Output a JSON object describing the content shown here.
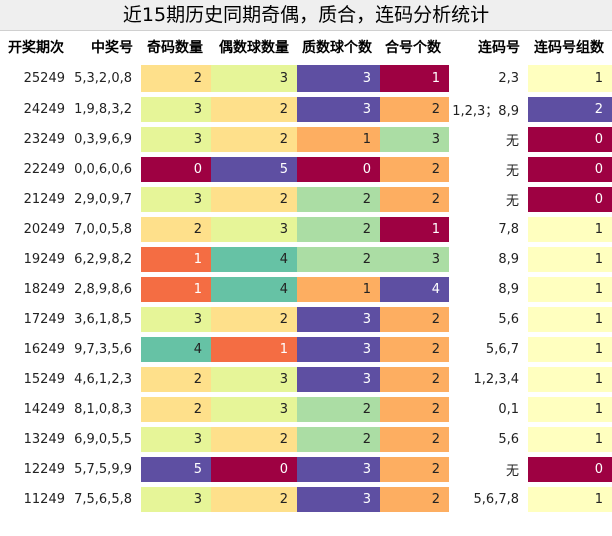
{
  "title": "近15期历史同期奇偶，质合，连码分析统计",
  "headers": [
    "开奖期次",
    "中奖号",
    "奇码数量",
    "偶数球数量",
    "质数球个数",
    "合号个数",
    "连码号",
    "连码号组数"
  ],
  "colors": {
    "dark_red": "#9e0142",
    "red_orange": "#f46d43",
    "orange": "#fdae61",
    "light_orange": "#fee08b",
    "light_yellow": "#ffffbf",
    "light_green": "#e6f598",
    "green": "#abdda4",
    "teal": "#66c2a5",
    "purple": "#5e4fa2"
  },
  "rows": [
    {
      "period": "25249",
      "numbers": "5,3,2,0,8",
      "odd": "2",
      "even": "3",
      "prime": "3",
      "composite": "1",
      "consec": "2,3",
      "groups": "1"
    },
    {
      "period": "24249",
      "numbers": "1,9,8,3,2",
      "odd": "3",
      "even": "2",
      "prime": "3",
      "composite": "2",
      "consec": "1,2,3；8,9",
      "groups": "2"
    },
    {
      "period": "23249",
      "numbers": "0,3,9,6,9",
      "odd": "3",
      "even": "2",
      "prime": "1",
      "composite": "3",
      "consec": "无",
      "groups": "0"
    },
    {
      "period": "22249",
      "numbers": "0,0,6,0,6",
      "odd": "0",
      "even": "5",
      "prime": "0",
      "composite": "2",
      "consec": "无",
      "groups": "0"
    },
    {
      "period": "21249",
      "numbers": "2,9,0,9,7",
      "odd": "3",
      "even": "2",
      "prime": "2",
      "composite": "2",
      "consec": "无",
      "groups": "0"
    },
    {
      "period": "20249",
      "numbers": "7,0,0,5,8",
      "odd": "2",
      "even": "3",
      "prime": "2",
      "composite": "1",
      "consec": "7,8",
      "groups": "1"
    },
    {
      "period": "19249",
      "numbers": "6,2,9,8,2",
      "odd": "1",
      "even": "4",
      "prime": "2",
      "composite": "3",
      "consec": "8,9",
      "groups": "1"
    },
    {
      "period": "18249",
      "numbers": "2,8,9,8,6",
      "odd": "1",
      "even": "4",
      "prime": "1",
      "composite": "4",
      "consec": "8,9",
      "groups": "1"
    },
    {
      "period": "17249",
      "numbers": "3,6,1,8,5",
      "odd": "3",
      "even": "2",
      "prime": "3",
      "composite": "2",
      "consec": "5,6",
      "groups": "1"
    },
    {
      "period": "16249",
      "numbers": "9,7,3,5,6",
      "odd": "4",
      "even": "1",
      "prime": "3",
      "composite": "2",
      "consec": "5,6,7",
      "groups": "1"
    },
    {
      "period": "15249",
      "numbers": "4,6,1,2,3",
      "odd": "2",
      "even": "3",
      "prime": "3",
      "composite": "2",
      "consec": "1,2,3,4",
      "groups": "1"
    },
    {
      "period": "14249",
      "numbers": "8,1,0,8,3",
      "odd": "2",
      "even": "3",
      "prime": "2",
      "composite": "2",
      "consec": "0,1",
      "groups": "1"
    },
    {
      "period": "13249",
      "numbers": "6,9,0,5,5",
      "odd": "3",
      "even": "2",
      "prime": "2",
      "composite": "2",
      "consec": "5,6",
      "groups": "1"
    },
    {
      "period": "12249",
      "numbers": "5,7,5,9,9",
      "odd": "5",
      "even": "0",
      "prime": "3",
      "composite": "2",
      "consec": "无",
      "groups": "0"
    },
    {
      "period": "11249",
      "numbers": "7,5,6,5,8",
      "odd": "3",
      "even": "2",
      "prime": "3",
      "composite": "2",
      "consec": "5,6,7,8",
      "groups": "1"
    }
  ]
}
